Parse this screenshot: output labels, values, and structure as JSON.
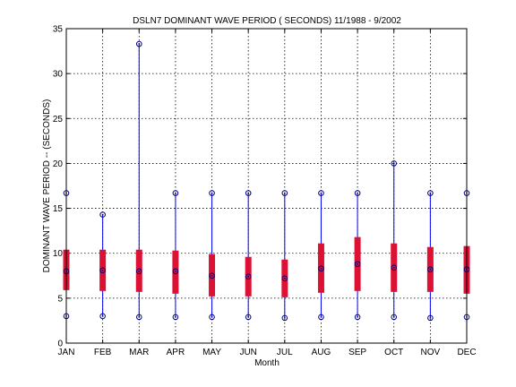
{
  "chart_data": {
    "type": "box",
    "title": "DSLN7  DOMINANT WAVE PERIOD ( SECONDS) 11/1988 - 9/2002",
    "xlabel": "Month",
    "ylabel": "DOMINANT WAVE PERIOD --  (SECONDS)",
    "ylim": [
      0,
      35
    ],
    "yticks": [
      0,
      5,
      10,
      15,
      20,
      25,
      30,
      35
    ],
    "grid": true,
    "categories": [
      "JAN",
      "FEB",
      "MAR",
      "APR",
      "MAY",
      "JUN",
      "JUL",
      "AUG",
      "SEP",
      "OCT",
      "NOV",
      "DEC"
    ],
    "min": [
      3.0,
      3.0,
      2.9,
      2.9,
      2.9,
      2.9,
      2.8,
      2.9,
      2.9,
      2.9,
      2.8,
      2.9
    ],
    "q1": [
      5.9,
      5.8,
      5.7,
      5.5,
      5.2,
      5.2,
      5.1,
      5.6,
      5.8,
      5.7,
      5.7,
      5.5
    ],
    "median": [
      8.0,
      8.1,
      8.0,
      8.0,
      7.5,
      7.4,
      7.2,
      8.3,
      8.8,
      8.4,
      8.2,
      8.2
    ],
    "q3": [
      10.4,
      10.4,
      10.4,
      10.3,
      9.9,
      9.6,
      9.3,
      11.1,
      11.8,
      11.1,
      10.7,
      10.8
    ],
    "max": [
      16.7,
      14.3,
      33.3,
      16.7,
      16.7,
      16.7,
      16.7,
      16.7,
      16.7,
      20.0,
      16.7,
      16.7
    ],
    "colors": {
      "whisker": "#0000ff",
      "box": "#dd1133",
      "marker": "#000080",
      "grid": "#000000"
    }
  }
}
